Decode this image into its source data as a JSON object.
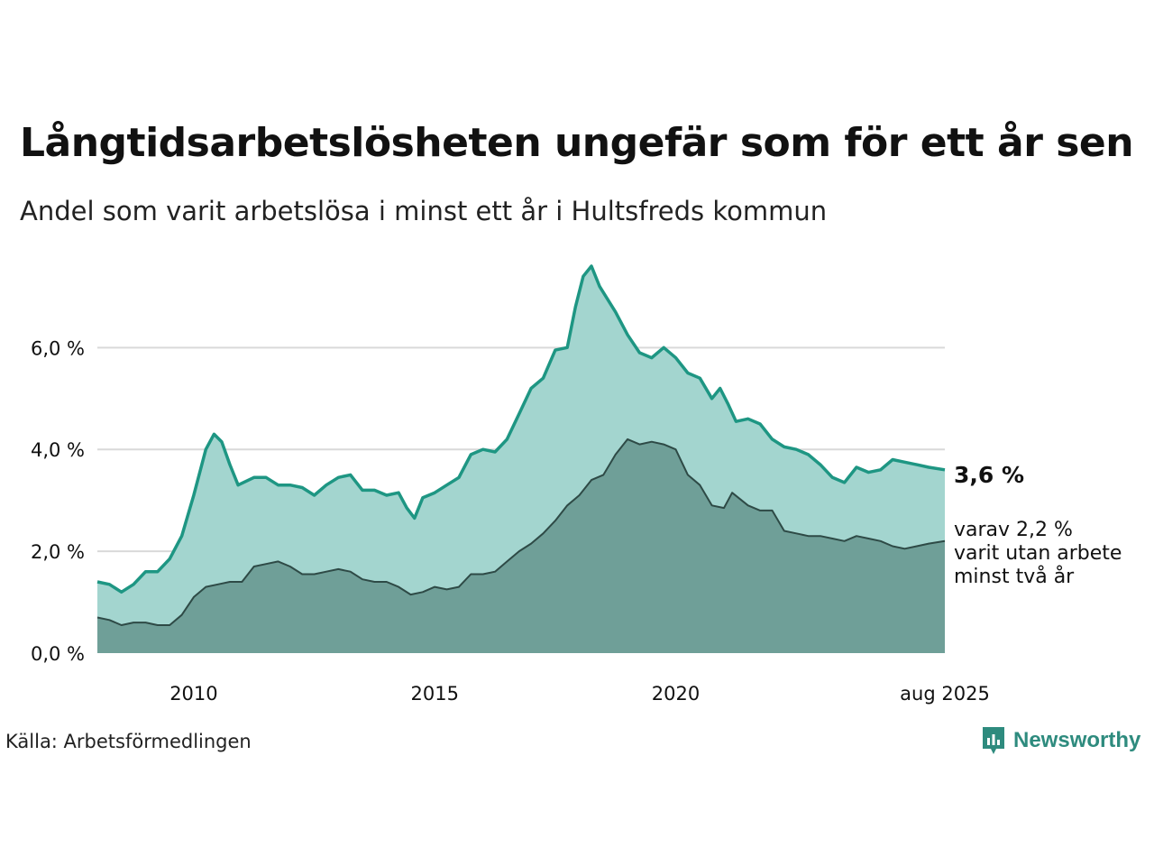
{
  "title": "Långtidsarbetslösheten ungefär som för ett år sen",
  "subtitle": "Andel som varit arbetslösa i minst ett år i Hultsfreds kommun",
  "source": "Källa: Arbetsförmedlingen",
  "brand": "Newsworthy",
  "colors": {
    "outer_fill": "#a3d5cf",
    "outer_line": "#1e9683",
    "inner_fill": "#6f9f98",
    "inner_line": "#2e4a46",
    "grid": "#d9d9d9",
    "brand": "#2e8b7e"
  },
  "chart_data": {
    "type": "area",
    "title": "Långtidsarbetslösheten ungefär som för ett år sen",
    "subtitle": "Andel som varit arbetslösa i minst ett år i Hultsfreds kommun",
    "xlabel": "",
    "ylabel": "",
    "xlim": [
      2008.0,
      2025.583
    ],
    "ylim": [
      0,
      7.6
    ],
    "y_ticks": [
      0,
      2,
      4,
      6
    ],
    "y_tick_labels": [
      "0,0 %",
      "2,0 %",
      "4,0 %",
      "6,0 %"
    ],
    "x_ticks": [
      2010,
      2015,
      2020,
      2025.583
    ],
    "x_tick_labels": [
      "2010",
      "2015",
      "2020",
      "aug 2025"
    ],
    "grid": true,
    "last_value_label": "3,6 %",
    "annotation": [
      "varav 2,2 %",
      "varit utan arbete",
      "minst två år"
    ],
    "series": [
      {
        "name": "",
        "points": [
          [
            2008.0,
            1.4
          ],
          [
            2008.25,
            1.35
          ],
          [
            2008.5,
            1.2
          ],
          [
            2008.75,
            1.35
          ],
          [
            2009.0,
            1.6
          ],
          [
            2009.25,
            1.6
          ],
          [
            2009.5,
            1.85
          ],
          [
            2009.75,
            2.3
          ],
          [
            2010.0,
            3.1
          ],
          [
            2010.25,
            4.0
          ],
          [
            2010.42,
            4.3
          ],
          [
            2010.58,
            4.15
          ],
          [
            2010.75,
            3.7
          ],
          [
            2010.92,
            3.3
          ],
          [
            2011.25,
            3.45
          ],
          [
            2011.5,
            3.45
          ],
          [
            2011.75,
            3.3
          ],
          [
            2012.0,
            3.3
          ],
          [
            2012.25,
            3.25
          ],
          [
            2012.5,
            3.1
          ],
          [
            2012.75,
            3.3
          ],
          [
            2013.0,
            3.45
          ],
          [
            2013.25,
            3.5
          ],
          [
            2013.5,
            3.2
          ],
          [
            2013.75,
            3.2
          ],
          [
            2014.0,
            3.1
          ],
          [
            2014.25,
            3.15
          ],
          [
            2014.42,
            2.85
          ],
          [
            2014.58,
            2.65
          ],
          [
            2014.75,
            3.05
          ],
          [
            2015.0,
            3.15
          ],
          [
            2015.25,
            3.3
          ],
          [
            2015.5,
            3.45
          ],
          [
            2015.75,
            3.9
          ],
          [
            2016.0,
            4.0
          ],
          [
            2016.25,
            3.95
          ],
          [
            2016.5,
            4.2
          ],
          [
            2016.75,
            4.7
          ],
          [
            2017.0,
            5.2
          ],
          [
            2017.25,
            5.4
          ],
          [
            2017.5,
            5.95
          ],
          [
            2017.75,
            6.0
          ],
          [
            2017.92,
            6.8
          ],
          [
            2018.08,
            7.4
          ],
          [
            2018.25,
            7.6
          ],
          [
            2018.42,
            7.2
          ],
          [
            2018.75,
            6.7
          ],
          [
            2019.0,
            6.25
          ],
          [
            2019.25,
            5.9
          ],
          [
            2019.5,
            5.8
          ],
          [
            2019.75,
            6.0
          ],
          [
            2020.0,
            5.8
          ],
          [
            2020.25,
            5.5
          ],
          [
            2020.5,
            5.4
          ],
          [
            2020.75,
            5.0
          ],
          [
            2020.92,
            5.2
          ],
          [
            2021.08,
            4.9
          ],
          [
            2021.25,
            4.55
          ],
          [
            2021.5,
            4.6
          ],
          [
            2021.75,
            4.5
          ],
          [
            2022.0,
            4.2
          ],
          [
            2022.25,
            4.05
          ],
          [
            2022.5,
            4.0
          ],
          [
            2022.75,
            3.9
          ],
          [
            2023.0,
            3.7
          ],
          [
            2023.25,
            3.45
          ],
          [
            2023.5,
            3.35
          ],
          [
            2023.75,
            3.65
          ],
          [
            2024.0,
            3.55
          ],
          [
            2024.25,
            3.6
          ],
          [
            2024.5,
            3.8
          ],
          [
            2024.75,
            3.75
          ],
          [
            2025.0,
            3.7
          ],
          [
            2025.25,
            3.65
          ],
          [
            2025.583,
            3.6
          ]
        ]
      },
      {
        "name": "",
        "points": [
          [
            2008.0,
            0.7
          ],
          [
            2008.25,
            0.65
          ],
          [
            2008.5,
            0.55
          ],
          [
            2008.75,
            0.6
          ],
          [
            2009.0,
            0.6
          ],
          [
            2009.25,
            0.55
          ],
          [
            2009.5,
            0.55
          ],
          [
            2009.75,
            0.75
          ],
          [
            2010.0,
            1.1
          ],
          [
            2010.25,
            1.3
          ],
          [
            2010.5,
            1.35
          ],
          [
            2010.75,
            1.4
          ],
          [
            2011.0,
            1.4
          ],
          [
            2011.25,
            1.7
          ],
          [
            2011.5,
            1.75
          ],
          [
            2011.75,
            1.8
          ],
          [
            2012.0,
            1.7
          ],
          [
            2012.25,
            1.55
          ],
          [
            2012.5,
            1.55
          ],
          [
            2012.75,
            1.6
          ],
          [
            2013.0,
            1.65
          ],
          [
            2013.25,
            1.6
          ],
          [
            2013.5,
            1.45
          ],
          [
            2013.75,
            1.4
          ],
          [
            2014.0,
            1.4
          ],
          [
            2014.25,
            1.3
          ],
          [
            2014.5,
            1.15
          ],
          [
            2014.75,
            1.2
          ],
          [
            2015.0,
            1.3
          ],
          [
            2015.25,
            1.25
          ],
          [
            2015.5,
            1.3
          ],
          [
            2015.75,
            1.55
          ],
          [
            2016.0,
            1.55
          ],
          [
            2016.25,
            1.6
          ],
          [
            2016.5,
            1.8
          ],
          [
            2016.75,
            2.0
          ],
          [
            2017.0,
            2.15
          ],
          [
            2017.25,
            2.35
          ],
          [
            2017.5,
            2.6
          ],
          [
            2017.75,
            2.9
          ],
          [
            2018.0,
            3.1
          ],
          [
            2018.25,
            3.4
          ],
          [
            2018.5,
            3.5
          ],
          [
            2018.75,
            3.9
          ],
          [
            2019.0,
            4.2
          ],
          [
            2019.25,
            4.1
          ],
          [
            2019.5,
            4.15
          ],
          [
            2019.75,
            4.1
          ],
          [
            2020.0,
            4.0
          ],
          [
            2020.25,
            3.5
          ],
          [
            2020.5,
            3.3
          ],
          [
            2020.75,
            2.9
          ],
          [
            2021.0,
            2.85
          ],
          [
            2021.17,
            3.15
          ],
          [
            2021.5,
            2.9
          ],
          [
            2021.75,
            2.8
          ],
          [
            2022.0,
            2.8
          ],
          [
            2022.25,
            2.4
          ],
          [
            2022.5,
            2.35
          ],
          [
            2022.75,
            2.3
          ],
          [
            2023.0,
            2.3
          ],
          [
            2023.25,
            2.25
          ],
          [
            2023.5,
            2.2
          ],
          [
            2023.75,
            2.3
          ],
          [
            2024.0,
            2.25
          ],
          [
            2024.25,
            2.2
          ],
          [
            2024.5,
            2.1
          ],
          [
            2024.75,
            2.05
          ],
          [
            2025.0,
            2.1
          ],
          [
            2025.25,
            2.15
          ],
          [
            2025.583,
            2.2
          ]
        ]
      }
    ]
  }
}
